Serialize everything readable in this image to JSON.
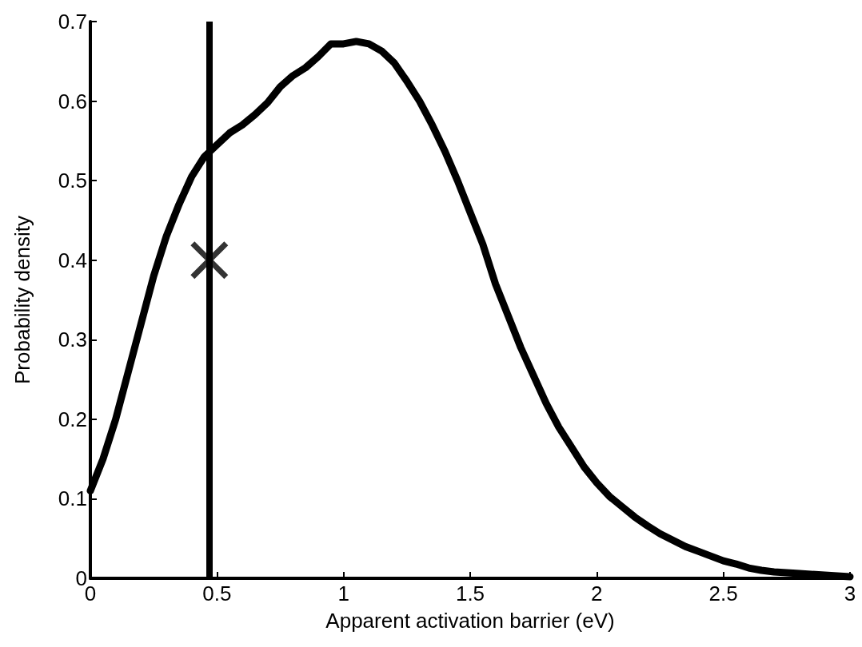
{
  "chart_data": {
    "type": "line",
    "xlabel": "Apparent activation barrier (eV)",
    "ylabel": "Probability density",
    "xlim": [
      0,
      3
    ],
    "xticks": [
      0,
      0.5,
      1,
      1.5,
      2,
      2.5,
      3
    ],
    "ylim": [
      0,
      0.7
    ],
    "yticks": [
      0,
      0.1,
      0.2,
      0.3,
      0.4,
      0.5,
      0.6,
      0.7
    ],
    "grid": false,
    "line_style": "solid",
    "series": [
      {
        "color": "#000000",
        "x": [
          0,
          0.05,
          0.1,
          0.15,
          0.2,
          0.25,
          0.3,
          0.35,
          0.4,
          0.45,
          0.5,
          0.55,
          0.6,
          0.65,
          0.7,
          0.75,
          0.8,
          0.85,
          0.9,
          0.95,
          1.0,
          1.05,
          1.1,
          1.15,
          1.2,
          1.25,
          1.3,
          1.35,
          1.4,
          1.45,
          1.5,
          1.55,
          1.6,
          1.65,
          1.7,
          1.75,
          1.8,
          1.85,
          1.9,
          1.95,
          2.0,
          2.05,
          2.1,
          2.15,
          2.2,
          2.25,
          2.3,
          2.35,
          2.4,
          2.45,
          2.5,
          2.55,
          2.6,
          2.65,
          2.7,
          2.8,
          2.9,
          3.0
        ],
        "values": [
          0.11,
          0.15,
          0.2,
          0.26,
          0.32,
          0.38,
          0.43,
          0.47,
          0.505,
          0.53,
          0.545,
          0.56,
          0.57,
          0.583,
          0.598,
          0.618,
          0.632,
          0.642,
          0.656,
          0.672,
          0.672,
          0.675,
          0.672,
          0.663,
          0.648,
          0.625,
          0.6,
          0.57,
          0.537,
          0.5,
          0.46,
          0.42,
          0.37,
          0.33,
          0.29,
          0.255,
          0.22,
          0.19,
          0.165,
          0.14,
          0.12,
          0.103,
          0.09,
          0.077,
          0.066,
          0.056,
          0.048,
          0.04,
          0.034,
          0.028,
          0.022,
          0.018,
          0.013,
          0.01,
          0.008,
          0.006,
          0.004,
          0.002
        ]
      },
      {
        "type": "scatter",
        "marker": "cross",
        "color": "#000000",
        "x": [
          0.47
        ],
        "values": [
          0.4
        ]
      }
    ],
    "ref_lines": [
      {
        "axis": "x",
        "value": 0.47,
        "color": "#000000",
        "line_style": "solid"
      }
    ]
  }
}
